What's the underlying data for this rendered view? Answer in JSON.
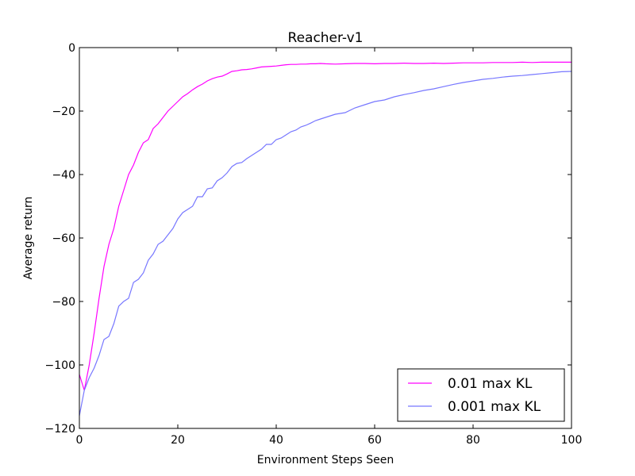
{
  "chart_data": {
    "type": "line",
    "title": "Reacher-v1",
    "xlabel": "Environment Steps Seen",
    "ylabel": "Average return",
    "xlim": [
      0,
      100
    ],
    "ylim": [
      -120,
      0
    ],
    "xticks": [
      0,
      20,
      40,
      60,
      80,
      100
    ],
    "yticks": [
      0,
      -20,
      -40,
      -60,
      -80,
      -100,
      -120
    ],
    "grid": false,
    "legend": "bottom-right",
    "series": [
      {
        "name": "0.01 max KL",
        "color": "#ff00ff",
        "x": [
          0,
          1,
          2,
          3,
          4,
          5,
          6,
          7,
          8,
          9,
          10,
          11,
          12,
          13,
          14,
          15,
          16,
          17,
          18,
          19,
          20,
          21,
          22,
          23,
          24,
          25,
          26,
          27,
          28,
          29,
          30,
          31,
          32,
          33,
          34,
          35,
          36,
          37,
          38,
          39,
          40,
          41,
          42,
          43,
          44,
          45,
          46,
          47,
          48,
          49,
          50,
          52,
          54,
          56,
          58,
          60,
          62,
          64,
          66,
          68,
          70,
          72,
          74,
          76,
          78,
          80,
          82,
          84,
          86,
          88,
          90,
          92,
          94,
          96,
          98,
          100
        ],
        "y": [
          -103,
          -108,
          -100,
          -90,
          -79,
          -69,
          -62,
          -57,
          -50,
          -45,
          -40,
          -37,
          -33,
          -30,
          -29,
          -25.5,
          -24,
          -22,
          -20,
          -18.5,
          -17,
          -15.5,
          -14.5,
          -13.3,
          -12.3,
          -11.5,
          -10.5,
          -9.8,
          -9.3,
          -9,
          -8.3,
          -7.5,
          -7.3,
          -7,
          -6.9,
          -6.7,
          -6.4,
          -6.1,
          -6,
          -5.9,
          -5.8,
          -5.6,
          -5.4,
          -5.3,
          -5.3,
          -5.2,
          -5.2,
          -5.1,
          -5.1,
          -5,
          -5.1,
          -5.2,
          -5.1,
          -5,
          -5,
          -5.1,
          -5,
          -5,
          -4.9,
          -5,
          -5,
          -4.9,
          -5,
          -4.9,
          -4.8,
          -4.8,
          -4.8,
          -4.7,
          -4.7,
          -4.7,
          -4.6,
          -4.7,
          -4.6,
          -4.6,
          -4.6,
          -4.6
        ]
      },
      {
        "name": "0.001 max KL",
        "color": "#7777ff",
        "x": [
          0,
          1,
          2,
          3,
          4,
          5,
          6,
          7,
          8,
          9,
          10,
          11,
          12,
          13,
          14,
          15,
          16,
          17,
          18,
          19,
          20,
          21,
          22,
          23,
          24,
          25,
          26,
          27,
          28,
          29,
          30,
          31,
          32,
          33,
          34,
          35,
          36,
          37,
          38,
          39,
          40,
          41,
          42,
          43,
          44,
          45,
          46,
          47,
          48,
          49,
          50,
          52,
          54,
          56,
          58,
          60,
          62,
          64,
          66,
          68,
          70,
          72,
          74,
          76,
          78,
          80,
          82,
          84,
          86,
          88,
          90,
          92,
          94,
          96,
          98,
          100
        ],
        "y": [
          -116,
          -108,
          -104,
          -101,
          -97,
          -92,
          -91,
          -87,
          -81.5,
          -80,
          -79,
          -74,
          -73,
          -71,
          -67,
          -65,
          -62,
          -61,
          -59,
          -57,
          -54,
          -52,
          -51,
          -50,
          -47,
          -47,
          -44.5,
          -44.2,
          -42,
          -41,
          -39.5,
          -37.5,
          -36.5,
          -36.2,
          -35,
          -34,
          -33,
          -32,
          -30.5,
          -30.5,
          -29,
          -28.5,
          -27.5,
          -26.5,
          -26,
          -25,
          -24.5,
          -23.8,
          -23,
          -22.5,
          -22,
          -21,
          -20.5,
          -19,
          -18,
          -17,
          -16.5,
          -15.5,
          -14.8,
          -14.2,
          -13.5,
          -13,
          -12.3,
          -11.6,
          -11,
          -10.5,
          -10,
          -9.7,
          -9.3,
          -9,
          -8.8,
          -8.5,
          -8.2,
          -7.9,
          -7.6,
          -7.5
        ]
      }
    ]
  }
}
